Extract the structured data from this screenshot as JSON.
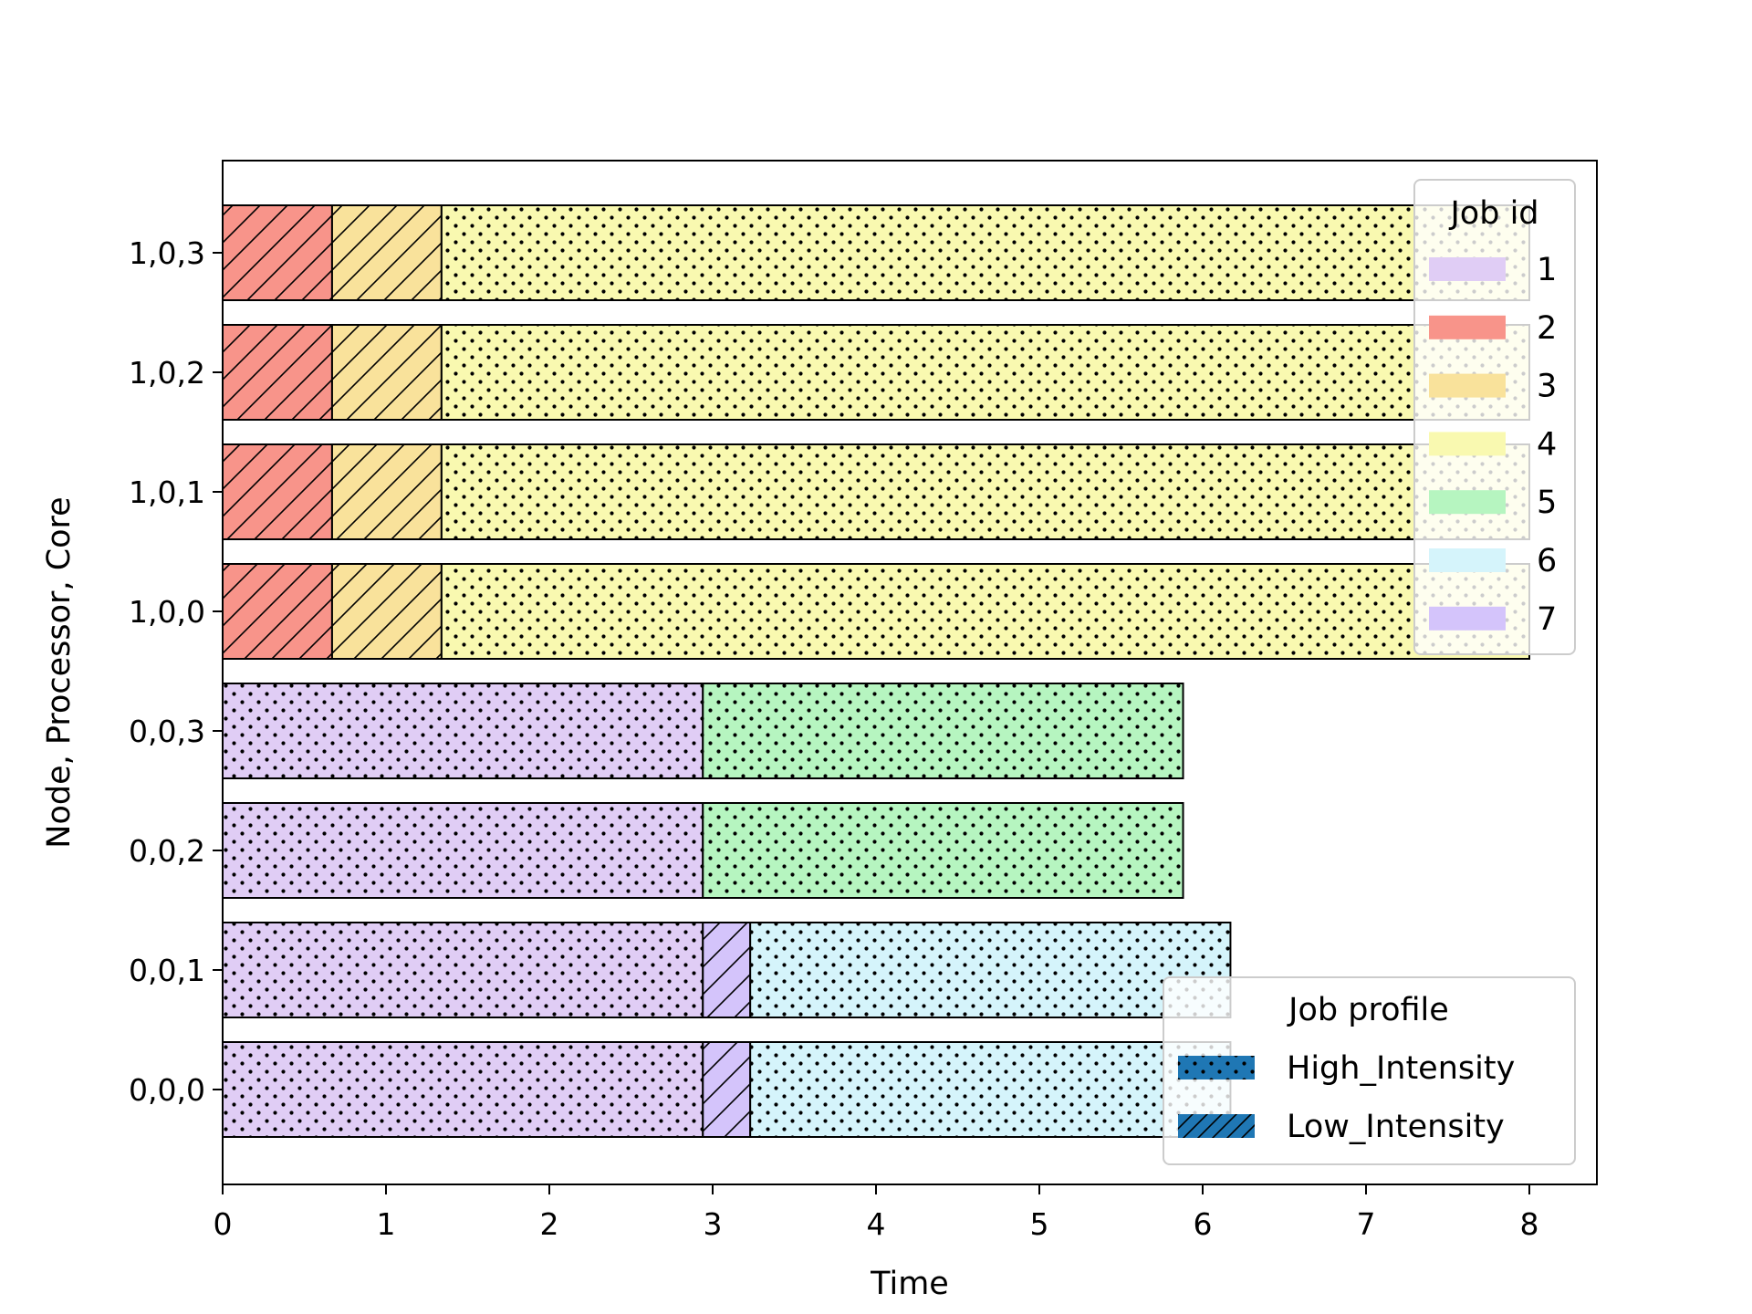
{
  "chart_data": {
    "type": "gantt",
    "xlabel": "Time",
    "ylabel": "Node, Processor, Core",
    "xlim": [
      0,
      8.4
    ],
    "xticks": [
      0,
      1,
      2,
      3,
      4,
      5,
      6,
      7,
      8
    ],
    "rows": [
      "0,0,0",
      "0,0,1",
      "0,0,2",
      "0,0,3",
      "1,0,0",
      "1,0,1",
      "1,0,2",
      "1,0,3"
    ],
    "segments": [
      {
        "row": "0,0,0",
        "job": "1",
        "start": 0,
        "end": 2.94,
        "profile": "High_Intensity"
      },
      {
        "row": "0,0,0",
        "job": "7",
        "start": 2.94,
        "end": 3.23,
        "profile": "Low_Intensity"
      },
      {
        "row": "0,0,0",
        "job": "6",
        "start": 3.23,
        "end": 6.17,
        "profile": "High_Intensity"
      },
      {
        "row": "0,0,1",
        "job": "1",
        "start": 0,
        "end": 2.94,
        "profile": "High_Intensity"
      },
      {
        "row": "0,0,1",
        "job": "7",
        "start": 2.94,
        "end": 3.23,
        "profile": "Low_Intensity"
      },
      {
        "row": "0,0,1",
        "job": "6",
        "start": 3.23,
        "end": 6.17,
        "profile": "High_Intensity"
      },
      {
        "row": "0,0,2",
        "job": "1",
        "start": 0,
        "end": 2.94,
        "profile": "High_Intensity"
      },
      {
        "row": "0,0,2",
        "job": "5",
        "start": 2.94,
        "end": 5.88,
        "profile": "High_Intensity"
      },
      {
        "row": "0,0,3",
        "job": "1",
        "start": 0,
        "end": 2.94,
        "profile": "High_Intensity"
      },
      {
        "row": "0,0,3",
        "job": "5",
        "start": 2.94,
        "end": 5.88,
        "profile": "High_Intensity"
      },
      {
        "row": "1,0,0",
        "job": "2",
        "start": 0,
        "end": 0.67,
        "profile": "Low_Intensity"
      },
      {
        "row": "1,0,0",
        "job": "3",
        "start": 0.67,
        "end": 1.34,
        "profile": "Low_Intensity"
      },
      {
        "row": "1,0,0",
        "job": "4",
        "start": 1.34,
        "end": 8.0,
        "profile": "High_Intensity"
      },
      {
        "row": "1,0,1",
        "job": "2",
        "start": 0,
        "end": 0.67,
        "profile": "Low_Intensity"
      },
      {
        "row": "1,0,1",
        "job": "3",
        "start": 0.67,
        "end": 1.34,
        "profile": "Low_Intensity"
      },
      {
        "row": "1,0,1",
        "job": "4",
        "start": 1.34,
        "end": 8.0,
        "profile": "High_Intensity"
      },
      {
        "row": "1,0,2",
        "job": "2",
        "start": 0,
        "end": 0.67,
        "profile": "Low_Intensity"
      },
      {
        "row": "1,0,2",
        "job": "3",
        "start": 0.67,
        "end": 1.34,
        "profile": "Low_Intensity"
      },
      {
        "row": "1,0,2",
        "job": "4",
        "start": 1.34,
        "end": 8.0,
        "profile": "High_Intensity"
      },
      {
        "row": "1,0,3",
        "job": "2",
        "start": 0,
        "end": 0.67,
        "profile": "Low_Intensity"
      },
      {
        "row": "1,0,3",
        "job": "3",
        "start": 0.67,
        "end": 1.34,
        "profile": "Low_Intensity"
      },
      {
        "row": "1,0,3",
        "job": "4",
        "start": 1.34,
        "end": 8.0,
        "profile": "High_Intensity"
      }
    ],
    "legend_jobs": {
      "title": "Job id",
      "placement": "top-right",
      "items": [
        {
          "label": "1",
          "color": "#e0cdf5"
        },
        {
          "label": "2",
          "color": "#f8948a"
        },
        {
          "label": "3",
          "color": "#f9e29b"
        },
        {
          "label": "4",
          "color": "#f9f9b0"
        },
        {
          "label": "5",
          "color": "#b6f5c0"
        },
        {
          "label": "6",
          "color": "#d5f4fb"
        },
        {
          "label": "7",
          "color": "#d4c4fb"
        }
      ]
    },
    "legend_profiles": {
      "title": "Job profile",
      "placement": "bottom-right",
      "color": "#1f77b4",
      "items": [
        {
          "label": "High_Intensity",
          "hatch": "dots"
        },
        {
          "label": "Low_Intensity",
          "hatch": "slash"
        }
      ]
    },
    "grid": false
  }
}
